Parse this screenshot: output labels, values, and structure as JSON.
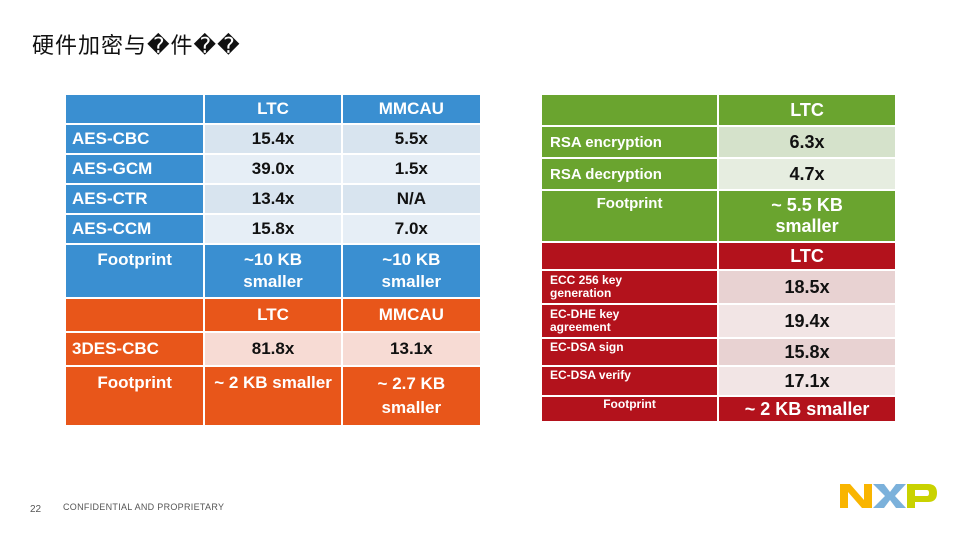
{
  "slide": {
    "title": "硬件加密与�件��",
    "page_number": "22",
    "footer": "CONFIDENTIAL AND PROPRIETARY",
    "logo_text": "NXP"
  },
  "left_table": {
    "header": [
      "",
      "LTC",
      "MMCAU"
    ],
    "rows": [
      {
        "label": "AES-CBC",
        "ltc": "15.4x",
        "mmcau": "5.5x"
      },
      {
        "label": "AES-GCM",
        "ltc": "39.0x",
        "mmcau": "1.5x"
      },
      {
        "label": "AES-CTR",
        "ltc": "13.4x",
        "mmcau": "N/A"
      },
      {
        "label": "AES-CCM",
        "ltc": "15.8x",
        "mmcau": "7.0x"
      }
    ],
    "footprint": {
      "label": "Footprint",
      "ltc_1": "~10 KB",
      "ltc_2": "smaller",
      "mmcau_1": "~10 KB",
      "mmcau_2": "smaller"
    },
    "header2": [
      "",
      "LTC",
      "MMCAU"
    ],
    "des_row": {
      "label": "3DES-CBC",
      "ltc": "81.8x",
      "mmcau": "13.1x"
    },
    "footprint2": {
      "label": "Footprint",
      "ltc": "~ 2 KB smaller",
      "mmcau_1": "~ 2.7 KB",
      "mmcau_2": "smaller"
    }
  },
  "right_table": {
    "header": [
      "",
      "LTC"
    ],
    "rsa_rows": [
      {
        "label": "RSA encryption",
        "value": "6.3x"
      },
      {
        "label": "RSA decryption",
        "value": "4.7x"
      }
    ],
    "rsa_footprint": {
      "label": "Footprint",
      "value_1": "~ 5.5 KB",
      "value_2": "smaller"
    },
    "header2": [
      "",
      "LTC"
    ],
    "ecc_rows": [
      {
        "label_1": "ECC 256 key",
        "label_2": "generation",
        "value": "18.5x"
      },
      {
        "label_1": "EC-DHE key",
        "label_2": "agreement",
        "value": "19.4x"
      },
      {
        "label_1": "EC-DSA sign",
        "label_2": "",
        "value": "15.8x"
      },
      {
        "label_1": "EC-DSA verify",
        "label_2": "",
        "value": "17.1x"
      }
    ],
    "ecc_footprint": {
      "label": "Footprint",
      "value": "~ 2 KB smaller"
    }
  },
  "colors": {
    "blue": "#3a8fd1",
    "orange": "#e8561a",
    "green": "#6aa42f",
    "red": "#b3121c",
    "nxp_yellow": "#f9b500",
    "nxp_blue": "#7bb1db",
    "nxp_green": "#c9d200"
  }
}
